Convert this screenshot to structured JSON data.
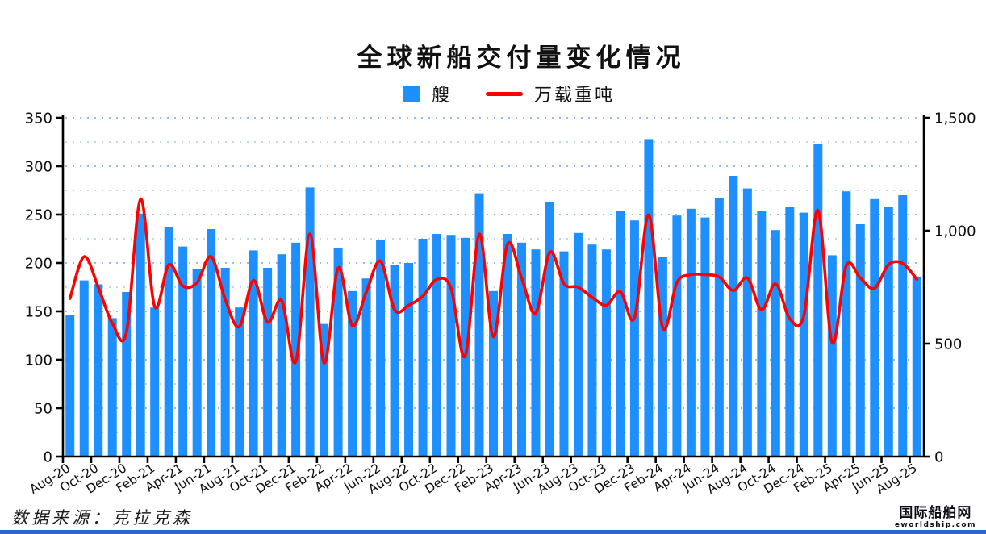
{
  "title": "全球新船交付量变化情况",
  "legend": {
    "bars": "艘",
    "line": "万载重吨"
  },
  "source": "数据来源：克拉克森",
  "logo": {
    "name": "国际船舶网",
    "domain": "eworldship.com"
  },
  "colors": {
    "bar": "#1E8FFF",
    "line": "#FF0000",
    "grid": "#82B7F7",
    "axis": "#000000",
    "footer_bar": "#2268CE"
  },
  "chart_data": {
    "type": "bar+line",
    "title": "全球新船交付量变化情况",
    "categories": [
      "Aug-20",
      "Sep-20",
      "Oct-20",
      "Nov-20",
      "Dec-20",
      "Jan-21",
      "Feb-21",
      "Mar-21",
      "Apr-21",
      "May-21",
      "Jun-21",
      "Jul-21",
      "Aug-21",
      "Sep-21",
      "Oct-21",
      "Nov-21",
      "Dec-21",
      "Jan-22",
      "Feb-22",
      "Mar-22",
      "Apr-22",
      "May-22",
      "Jun-22",
      "Jul-22",
      "Aug-22",
      "Sep-22",
      "Oct-22",
      "Nov-22",
      "Dec-22",
      "Jan-23",
      "Feb-23",
      "Mar-23",
      "Apr-23",
      "May-23",
      "Jun-23",
      "Jul-23",
      "Aug-23",
      "Sep-23",
      "Oct-23",
      "Nov-23",
      "Dec-23",
      "Jan-24",
      "Feb-24",
      "Mar-24",
      "Apr-24",
      "May-24",
      "Jun-24",
      "Jul-24",
      "Aug-24",
      "Sep-24",
      "Oct-24",
      "Nov-24",
      "Dec-24",
      "Jan-25",
      "Feb-25",
      "Mar-25",
      "Apr-25",
      "May-25",
      "Jun-25",
      "Jul-25",
      "Aug-25"
    ],
    "series": [
      {
        "name": "艘",
        "type": "bar",
        "axis": "left",
        "values": [
          146,
          182,
          178,
          143,
          170,
          251,
          154,
          237,
          217,
          194,
          235,
          195,
          154,
          213,
          195,
          209,
          221,
          278,
          137,
          215,
          171,
          184,
          224,
          198,
          200,
          225,
          230,
          229,
          226,
          272,
          171,
          230,
          221,
          214,
          263,
          212,
          231,
          219,
          214,
          254,
          244,
          328,
          206,
          249,
          256,
          247,
          267,
          290,
          277,
          254,
          234,
          258,
          252,
          323,
          208,
          274,
          240,
          266,
          258,
          270,
          186
        ]
      },
      {
        "name": "万载重吨",
        "type": "line",
        "axis": "right",
        "values": [
          700,
          885,
          750,
          590,
          550,
          1140,
          665,
          850,
          755,
          770,
          885,
          695,
          575,
          780,
          595,
          690,
          420,
          985,
          415,
          835,
          580,
          730,
          865,
          650,
          670,
          710,
          785,
          745,
          445,
          985,
          530,
          940,
          790,
          635,
          905,
          765,
          750,
          705,
          670,
          730,
          615,
          1070,
          570,
          770,
          805,
          805,
          795,
          735,
          790,
          650,
          765,
          610,
          625,
          1090,
          505,
          845,
          790,
          745,
          850,
          855,
          785
        ]
      }
    ],
    "left_axis": {
      "min": 0,
      "max": 350,
      "step": 50
    },
    "right_axis": {
      "min": 0,
      "max": 1500,
      "step": 500,
      "tick_labels": [
        "0",
        "500",
        "1,000",
        "1,500"
      ]
    },
    "x_tick_every": 2,
    "grid": "dotted horizontal lines every 25 (left scale)",
    "legend_position": "top-center"
  }
}
